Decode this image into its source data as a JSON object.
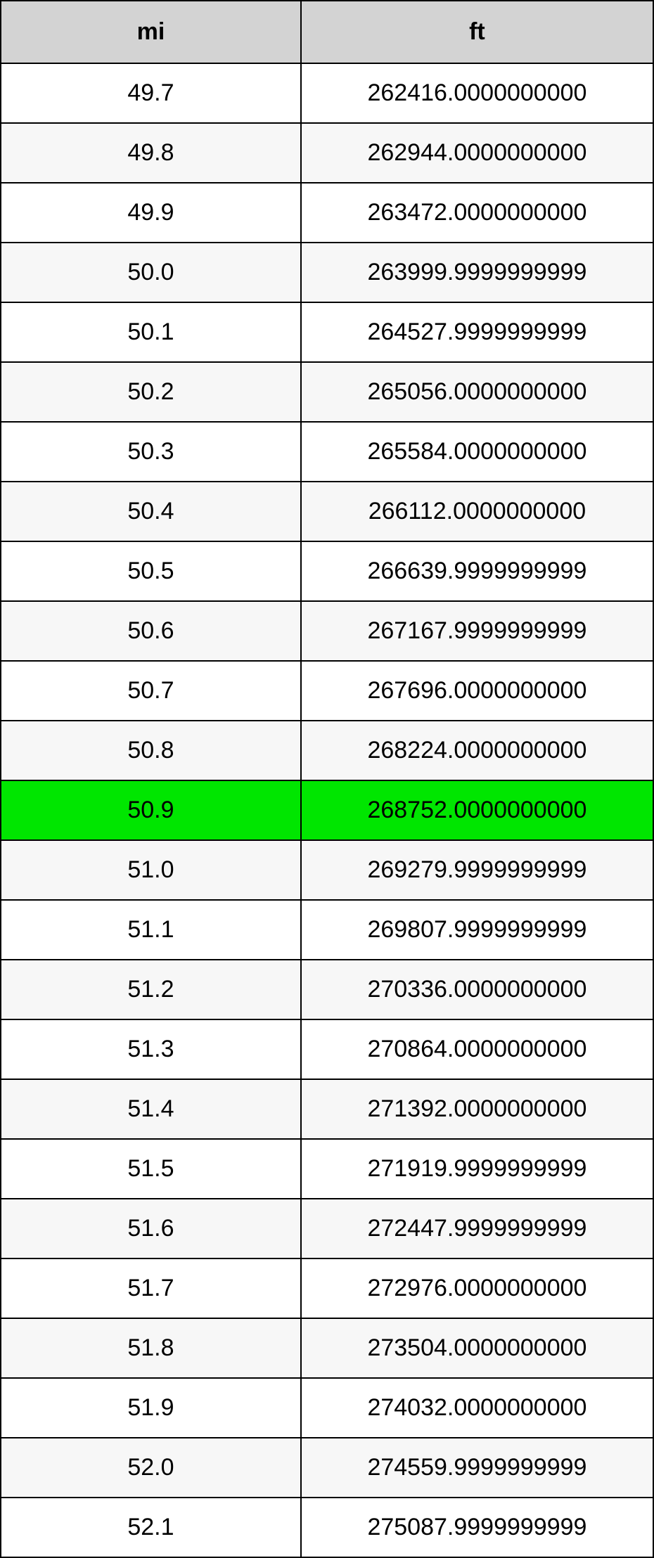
{
  "conversion_table": {
    "type": "table",
    "columns": [
      "mi",
      "ft"
    ],
    "column_widths_pct": [
      46,
      54
    ],
    "header_bg_color": "#d3d3d3",
    "header_font_weight": "bold",
    "header_fontsize": 34,
    "cell_fontsize": 34,
    "border_color": "#000000",
    "border_width": 2,
    "row_even_bg": "#ffffff",
    "row_odd_bg": "#f7f7f7",
    "highlight_bg": "#00e600",
    "highlight_row_index": 12,
    "text_align": "center",
    "text_color": "#000000",
    "font_family": "Arial, Helvetica, sans-serif",
    "rows": [
      {
        "mi": "49.7",
        "ft": "262416.0000000000"
      },
      {
        "mi": "49.8",
        "ft": "262944.0000000000"
      },
      {
        "mi": "49.9",
        "ft": "263472.0000000000"
      },
      {
        "mi": "50.0",
        "ft": "263999.9999999999"
      },
      {
        "mi": "50.1",
        "ft": "264527.9999999999"
      },
      {
        "mi": "50.2",
        "ft": "265056.0000000000"
      },
      {
        "mi": "50.3",
        "ft": "265584.0000000000"
      },
      {
        "mi": "50.4",
        "ft": "266112.0000000000"
      },
      {
        "mi": "50.5",
        "ft": "266639.9999999999"
      },
      {
        "mi": "50.6",
        "ft": "267167.9999999999"
      },
      {
        "mi": "50.7",
        "ft": "267696.0000000000"
      },
      {
        "mi": "50.8",
        "ft": "268224.0000000000"
      },
      {
        "mi": "50.9",
        "ft": "268752.0000000000"
      },
      {
        "mi": "51.0",
        "ft": "269279.9999999999"
      },
      {
        "mi": "51.1",
        "ft": "269807.9999999999"
      },
      {
        "mi": "51.2",
        "ft": "270336.0000000000"
      },
      {
        "mi": "51.3",
        "ft": "270864.0000000000"
      },
      {
        "mi": "51.4",
        "ft": "271392.0000000000"
      },
      {
        "mi": "51.5",
        "ft": "271919.9999999999"
      },
      {
        "mi": "51.6",
        "ft": "272447.9999999999"
      },
      {
        "mi": "51.7",
        "ft": "272976.0000000000"
      },
      {
        "mi": "51.8",
        "ft": "273504.0000000000"
      },
      {
        "mi": "51.9",
        "ft": "274032.0000000000"
      },
      {
        "mi": "52.0",
        "ft": "274559.9999999999"
      },
      {
        "mi": "52.1",
        "ft": "275087.9999999999"
      }
    ]
  }
}
